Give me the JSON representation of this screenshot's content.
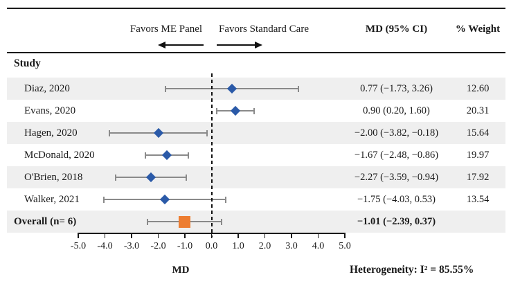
{
  "header": {
    "favors_left": "Favors ME Panel",
    "favors_right": "Favors Standard Care",
    "md_ci_header": "MD (95% CI)",
    "weight_header": "% Weight"
  },
  "study_column_header": "Study",
  "chart_data": {
    "type": "forest",
    "xlabel": "MD",
    "xlim": [
      -5.0,
      5.0
    ],
    "x_ticks": [
      -5,
      -4,
      -3,
      -2,
      -1,
      0,
      1,
      2,
      3,
      4,
      5
    ],
    "x_tick_labels": [
      "-5.0",
      "-4.0",
      "-3.0",
      "-2.0",
      "-1.0",
      "0.0",
      "1.0",
      "2.0",
      "3.0",
      "4.0",
      "5.0"
    ],
    "zero_reference_line": 0.0,
    "grid": false,
    "studies": [
      {
        "label": "Diaz, 2020",
        "md": 0.77,
        "ci_low": -1.73,
        "ci_high": 3.26,
        "md_ci_text": "0.77 (−1.73, 3.26)",
        "weight_text": "12.60",
        "overall": false
      },
      {
        "label": "Evans, 2020",
        "md": 0.9,
        "ci_low": 0.2,
        "ci_high": 1.6,
        "md_ci_text": "0.90 (0.20, 1.60)",
        "weight_text": "20.31",
        "overall": false
      },
      {
        "label": "Hagen, 2020",
        "md": -2.0,
        "ci_low": -3.82,
        "ci_high": -0.18,
        "md_ci_text": "−2.00 (−3.82, −0.18)",
        "weight_text": "15.64",
        "overall": false
      },
      {
        "label": "McDonald, 2020",
        "md": -1.67,
        "ci_low": -2.48,
        "ci_high": -0.86,
        "md_ci_text": "−1.67 (−2.48, −0.86)",
        "weight_text": "19.97",
        "overall": false
      },
      {
        "label": "O'Brien, 2018",
        "md": -2.27,
        "ci_low": -3.59,
        "ci_high": -0.94,
        "md_ci_text": "−2.27 (−3.59, −0.94)",
        "weight_text": "17.92",
        "overall": false
      },
      {
        "label": "Walker, 2021",
        "md": -1.75,
        "ci_low": -4.03,
        "ci_high": 0.53,
        "md_ci_text": "−1.75 (−4.03, 0.53)",
        "weight_text": "13.54",
        "overall": false
      },
      {
        "label": "Overall (n= 6)",
        "md": -1.01,
        "ci_low": -2.39,
        "ci_high": 0.37,
        "md_ci_text": "−1.01 (−2.39, 0.37)",
        "weight_text": "",
        "overall": true
      }
    ],
    "footer": "Heterogeneity: I² = 85.55%",
    "colors": {
      "study_marker": "#2B5AA8",
      "overall_marker": "#ED7D31",
      "ci_line": "#8A8A8A",
      "row_band": "#EFEFEF",
      "rule": "#1A1A1A"
    }
  }
}
